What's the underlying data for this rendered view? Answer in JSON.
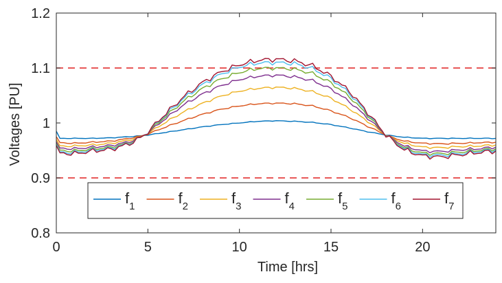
{
  "chart_data": {
    "type": "line",
    "title": "",
    "xlabel": "Time [hrs]",
    "ylabel": "Voltages [PU]",
    "xlim": [
      0,
      24
    ],
    "ylim": [
      0.8,
      1.2
    ],
    "x_ticks": [
      0,
      5,
      10,
      15,
      20
    ],
    "x_tick_labels": [
      "0",
      "5",
      "10",
      "15",
      "20"
    ],
    "y_ticks": [
      0.8,
      0.9,
      1.0,
      1.1,
      1.2
    ],
    "y_tick_labels": [
      "0.8",
      "0.9",
      "1",
      "1.1",
      "1.2"
    ],
    "grid": false,
    "legend": {
      "placement": "bottom",
      "orientation": "horizontal"
    },
    "x": [
      0,
      0.1,
      0.25,
      1,
      2,
      3,
      4,
      4.75,
      5,
      6,
      7,
      8,
      9,
      10,
      11,
      12,
      13,
      14,
      15,
      16,
      17,
      18,
      18.5,
      19,
      20,
      21,
      22,
      23,
      24
    ],
    "series": [
      {
        "name": "f",
        "sub": "1",
        "color": "#0072BD",
        "values": [
          0.985,
          0.972,
          0.972,
          0.972,
          0.972,
          0.973,
          0.975,
          0.977,
          0.978,
          0.983,
          0.988,
          0.993,
          0.997,
          1.0,
          1.003,
          1.004,
          1.003,
          1.001,
          0.997,
          0.991,
          0.984,
          0.978,
          0.976,
          0.974,
          0.972,
          0.972,
          0.972,
          0.972,
          0.972
        ]
      },
      {
        "name": "f",
        "sub": "2",
        "color": "#D95319",
        "values": [
          0.975,
          0.965,
          0.964,
          0.963,
          0.965,
          0.967,
          0.972,
          0.977,
          0.98,
          0.993,
          1.005,
          1.016,
          1.025,
          1.031,
          1.035,
          1.036,
          1.035,
          1.031,
          1.022,
          1.01,
          0.994,
          0.978,
          0.972,
          0.967,
          0.963,
          0.962,
          0.963,
          0.964,
          0.965
        ]
      },
      {
        "name": "f",
        "sub": "3",
        "color": "#EDB120",
        "values": [
          0.97,
          0.96,
          0.958,
          0.958,
          0.96,
          0.963,
          0.969,
          0.976,
          0.981,
          1.002,
          1.021,
          1.036,
          1.049,
          1.058,
          1.063,
          1.065,
          1.063,
          1.057,
          1.045,
          1.026,
          1.003,
          0.978,
          0.97,
          0.963,
          0.956,
          0.955,
          0.957,
          0.958,
          0.96
        ]
      },
      {
        "name": "f",
        "sub": "4",
        "color": "#7E2F8E",
        "values": [
          0.966,
          0.955,
          0.954,
          0.953,
          0.956,
          0.959,
          0.966,
          0.976,
          0.982,
          1.009,
          1.034,
          1.053,
          1.068,
          1.079,
          1.085,
          1.087,
          1.084,
          1.077,
          1.062,
          1.039,
          1.009,
          0.978,
          0.968,
          0.958,
          0.949,
          0.948,
          0.951,
          0.953,
          0.956
        ]
      },
      {
        "name": "f",
        "sub": "5",
        "color": "#77AC30",
        "values": [
          0.963,
          0.952,
          0.95,
          0.949,
          0.953,
          0.956,
          0.964,
          0.976,
          0.983,
          1.013,
          1.041,
          1.063,
          1.08,
          1.092,
          1.099,
          1.1,
          1.098,
          1.09,
          1.073,
          1.048,
          1.014,
          0.978,
          0.966,
          0.955,
          0.945,
          0.944,
          0.947,
          0.95,
          0.953
        ]
      },
      {
        "name": "f",
        "sub": "6",
        "color": "#4DBEEE",
        "values": [
          0.961,
          0.949,
          0.947,
          0.946,
          0.951,
          0.954,
          0.963,
          0.976,
          0.984,
          1.016,
          1.046,
          1.07,
          1.089,
          1.102,
          1.109,
          1.11,
          1.108,
          1.099,
          1.081,
          1.054,
          1.017,
          0.978,
          0.965,
          0.953,
          0.942,
          0.941,
          0.944,
          0.948,
          0.951
        ]
      },
      {
        "name": "f",
        "sub": "7",
        "color": "#A2142F",
        "values": [
          0.959,
          0.947,
          0.945,
          0.944,
          0.949,
          0.952,
          0.962,
          0.976,
          0.984,
          1.018,
          1.049,
          1.074,
          1.093,
          1.106,
          1.114,
          1.116,
          1.113,
          1.104,
          1.085,
          1.058,
          1.019,
          0.978,
          0.964,
          0.951,
          0.94,
          0.938,
          0.942,
          0.946,
          0.949
        ]
      }
    ],
    "reference_lines": [
      {
        "y": 1.1,
        "color": "#E02020",
        "style": "dashed"
      },
      {
        "y": 0.9,
        "color": "#E02020",
        "style": "dashed"
      }
    ]
  }
}
